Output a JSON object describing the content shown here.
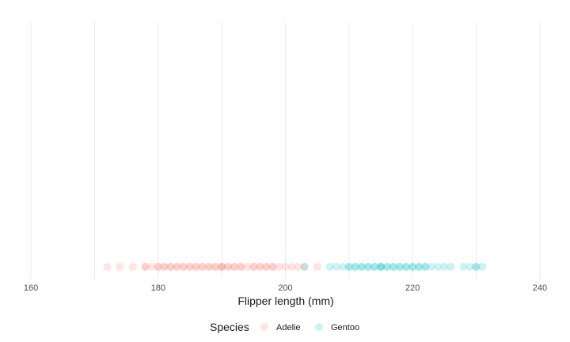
{
  "chart_data": {
    "type": "scatter",
    "title": "",
    "xlabel": "Flipper length (mm)",
    "ylabel": "",
    "xlim": [
      158,
      242
    ],
    "xticks": [
      160,
      180,
      200,
      220,
      240
    ],
    "grid": true,
    "legend": {
      "title": "Species",
      "position": "bottom"
    },
    "point_alpha": 0.2,
    "series": [
      {
        "name": "Adelie",
        "color": "#F8766D",
        "x": [
          172,
          174,
          176,
          178,
          178,
          179,
          180,
          180,
          181,
          181,
          182,
          182,
          183,
          183,
          184,
          184,
          185,
          185,
          186,
          186,
          187,
          187,
          188,
          188,
          189,
          189,
          190,
          190,
          190,
          191,
          191,
          192,
          192,
          193,
          193,
          194,
          195,
          195,
          196,
          196,
          197,
          197,
          198,
          198,
          199,
          200,
          201,
          202,
          203,
          205
        ]
      },
      {
        "name": "Gentoo",
        "color": "#00BFC4",
        "x": [
          203,
          207,
          208,
          209,
          210,
          210,
          211,
          211,
          212,
          212,
          213,
          213,
          214,
          214,
          215,
          215,
          215,
          216,
          216,
          217,
          217,
          218,
          218,
          219,
          219,
          220,
          220,
          221,
          221,
          222,
          222,
          223,
          224,
          225,
          226,
          228,
          229,
          230,
          230,
          231
        ]
      }
    ]
  }
}
